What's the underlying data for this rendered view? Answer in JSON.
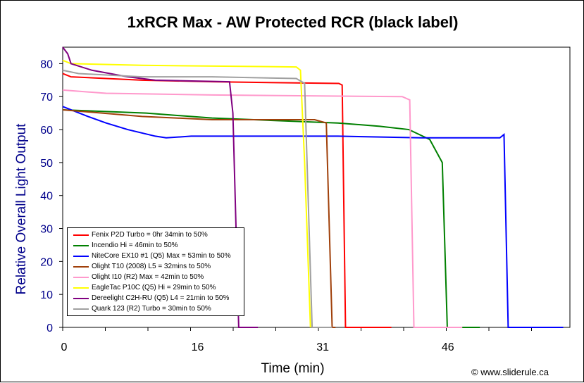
{
  "chart_data": {
    "type": "line",
    "title": "1xRCR Max - AW Protected RCR (black label)",
    "xlabel": "Time (min)",
    "ylabel": "Relative Overall Light Output",
    "xlim": [
      0,
      60.8
    ],
    "ylim": [
      0,
      85
    ],
    "xticks": [
      0,
      16,
      31,
      46
    ],
    "yticks": [
      0,
      10,
      20,
      30,
      40,
      50,
      60,
      70,
      80
    ],
    "grid": false,
    "legend": "bottom-left",
    "credit": "© www.sliderule.ca",
    "series": [
      {
        "name": "Fenix P2D Turbo = 0hr 34min to 50%",
        "color": "#ff0000",
        "x": [
          0,
          1,
          9.5,
          18,
          33.1,
          33.5,
          33.9,
          39.4
        ],
        "y": [
          77,
          76,
          75,
          74.5,
          74,
          73.5,
          0,
          0
        ]
      },
      {
        "name": "Incendio Hi = 46min to 50%",
        "color": "#008000",
        "x": [
          0,
          10,
          17.9,
          33,
          38,
          41.5,
          44,
          45.5,
          46.1,
          50
        ],
        "y": [
          66,
          65,
          63.5,
          62,
          61,
          60,
          57,
          50,
          0,
          0
        ]
      },
      {
        "name": "NiteCore EX10 #1 (Q5) Max = 53min to 50%",
        "color": "#0000ff",
        "x": [
          0,
          3,
          5.2,
          7.8,
          11.1,
          12.4,
          15.4,
          33,
          43,
          52.4,
          52.9,
          53.4,
          60
        ],
        "y": [
          67,
          64,
          62,
          60,
          58,
          57.5,
          58,
          58,
          57.5,
          57.5,
          58.5,
          0,
          0
        ]
      },
      {
        "name": "Olight T10 (2008) L5 = 32mins to 50%",
        "color": "#a0400a",
        "x": [
          0,
          9.5,
          17.9,
          30.2,
          31.6,
          32.3,
          32.7
        ],
        "y": [
          66,
          64,
          63,
          63,
          62,
          0,
          0
        ]
      },
      {
        "name": "Olight I10 (R2) Max = 42min to 50%",
        "color": "#ff99cc",
        "x": [
          0,
          5.2,
          17.9,
          40.7,
          41.6,
          42.1,
          47.9
        ],
        "y": [
          72,
          71,
          70.5,
          70,
          69,
          0,
          0
        ]
      },
      {
        "name": "EagleTac P10C (Q5) Hi = 29min to 50%",
        "color": "#ffff00",
        "x": [
          0,
          1,
          9.5,
          28,
          28.5,
          29,
          29.7
        ],
        "y": [
          81,
          80,
          79.5,
          79,
          78,
          50,
          0
        ]
      },
      {
        "name": "Dereelight C2H-RU (Q5) L4 = 21min to 50%",
        "color": "#800080",
        "x": [
          0,
          0.6,
          1,
          3.5,
          7.8,
          11.1,
          20,
          20.4,
          21.1,
          23.4
        ],
        "y": [
          85,
          83,
          80,
          78,
          76,
          75,
          74.5,
          65,
          0,
          0
        ]
      },
      {
        "name": "Quark 123 (R2) Turbo = 30min to 50%",
        "color": "#a0a0a0",
        "x": [
          0,
          1.9,
          9.5,
          17.9,
          28,
          29,
          29.9,
          32.3
        ],
        "y": [
          78,
          77,
          76,
          76,
          75.5,
          74,
          0,
          0
        ]
      }
    ]
  }
}
